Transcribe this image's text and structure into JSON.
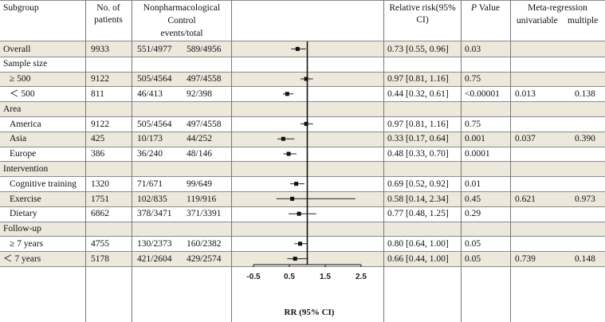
{
  "headers": {
    "subgroup": "Subgroup",
    "patients": "No. of patients",
    "nonpharm": "Nonpharmacological",
    "control": "Control",
    "events": "events/total",
    "rr": "Relative risk(95% CI)",
    "p_italic": "P",
    "p_rest": " Value",
    "meta": "Meta-regression",
    "univariable": "univariable",
    "multiple": "multiple"
  },
  "rows": [
    {
      "label": "Overall",
      "n": "9933",
      "np": "551/4977",
      "ctrl": "589/4956",
      "rr": "0.73 [0.55, 0.96]",
      "p": "0.03",
      "shade": true,
      "indent": false
    },
    {
      "label": "Sample size",
      "n": "",
      "np": "",
      "ctrl": "",
      "rr": "",
      "p": "",
      "shade": false,
      "indent": false
    },
    {
      "label": "≥ 500",
      "n": "9122",
      "np": "505/4564",
      "ctrl": "497/4558",
      "rr": "0.97 [0.81, 1.16]",
      "p": "0.75",
      "shade": true,
      "indent": true
    },
    {
      "label": "＜ 500",
      "n": "811",
      "np": "46/413",
      "ctrl": "92/398",
      "rr": "0.44 [0.32, 0.61]",
      "p": "<0.00001",
      "shade": false,
      "indent": true
    },
    {
      "label": "Area",
      "n": "",
      "np": "",
      "ctrl": "",
      "rr": "",
      "p": "",
      "shade": true,
      "indent": false
    },
    {
      "label": "America",
      "n": "9122",
      "np": "505/4564",
      "ctrl": "497/4558",
      "rr": "0.97 [0.81, 1.16]",
      "p": "0.75",
      "shade": false,
      "indent": true
    },
    {
      "label": "Asia",
      "n": "425",
      "np": "10/173",
      "ctrl": "44/252",
      "rr": "0.33 [0.17, 0.64]",
      "p": "0.001",
      "shade": true,
      "indent": true
    },
    {
      "label": "Europe",
      "n": "386",
      "np": "36/240",
      "ctrl": "48/146",
      "rr": "0.48 [0.33, 0.70]",
      "p": "0.0001",
      "shade": false,
      "indent": true
    },
    {
      "label": "Intervention",
      "n": "",
      "np": "",
      "ctrl": "",
      "rr": "",
      "p": "",
      "shade": true,
      "indent": false
    },
    {
      "label": "Cognitive training",
      "n": "1320",
      "np": "71/671",
      "ctrl": "99/649",
      "rr": "0.69 [0.52, 0.92]",
      "p": "0.01",
      "shade": false,
      "indent": true
    },
    {
      "label": "Exercise",
      "n": "1751",
      "np": "102/835",
      "ctrl": "119/916",
      "rr": "0.58 [0.14, 2.34]",
      "p": "0.45",
      "shade": true,
      "indent": true
    },
    {
      "label": "Dietary",
      "n": "6862",
      "np": "378/3471",
      "ctrl": "371/3391",
      "rr": "0.77 [0.48, 1.25]",
      "p": "0.29",
      "shade": false,
      "indent": true
    },
    {
      "label": "Follow-up",
      "n": "",
      "np": "",
      "ctrl": "",
      "rr": "",
      "p": "",
      "shade": true,
      "indent": false
    },
    {
      "label": "≥ 7 years",
      "n": "4755",
      "np": "130/2373",
      "ctrl": "160/2382",
      "rr": "0.80 [0.64, 1.00]",
      "p": "0.05",
      "shade": false,
      "indent": true
    },
    {
      "label": "＜ 7 years",
      "n": "5178",
      "np": "421/2604",
      "ctrl": "429/2574",
      "rr": "0.66 [0.44, 1.00]",
      "p": "0.05",
      "shade": true,
      "indent": false
    }
  ],
  "meta_regression": [
    {
      "group": "Sample size",
      "univariable": "0.013",
      "multiple": "0.138"
    },
    {
      "group": "Area",
      "univariable": "0.037",
      "multiple": "0.390"
    },
    {
      "group": "Intervention",
      "univariable": "0.621",
      "multiple": "0.973"
    },
    {
      "group": "Follow-up",
      "univariable": "0.739",
      "multiple": "0.148"
    }
  ],
  "chart_data": {
    "type": "forest",
    "xlabel": "RR (95% CI)",
    "xlim": [
      -0.5,
      2.5
    ],
    "xticks": [
      "-0.5",
      "0.5",
      "1.5",
      "2.5"
    ],
    "reference_line": 1,
    "points": [
      {
        "row": "Overall",
        "rr": 0.73,
        "lo": 0.55,
        "hi": 0.96
      },
      {
        "row": "≥ 500",
        "rr": 0.97,
        "lo": 0.81,
        "hi": 1.16
      },
      {
        "row": "＜ 500",
        "rr": 0.44,
        "lo": 0.32,
        "hi": 0.61
      },
      {
        "row": "America",
        "rr": 0.97,
        "lo": 0.81,
        "hi": 1.16
      },
      {
        "row": "Asia",
        "rr": 0.33,
        "lo": 0.17,
        "hi": 0.64
      },
      {
        "row": "Europe",
        "rr": 0.48,
        "lo": 0.33,
        "hi": 0.7
      },
      {
        "row": "Cognitive training",
        "rr": 0.69,
        "lo": 0.52,
        "hi": 0.92
      },
      {
        "row": "Exercise",
        "rr": 0.58,
        "lo": 0.14,
        "hi": 2.34
      },
      {
        "row": "Dietary",
        "rr": 0.77,
        "lo": 0.48,
        "hi": 1.25
      },
      {
        "row": "≥ 7 years",
        "rr": 0.8,
        "lo": 0.64,
        "hi": 1.0
      },
      {
        "row": "＜ 7 years",
        "rr": 0.66,
        "lo": 0.44,
        "hi": 1.0
      }
    ]
  }
}
